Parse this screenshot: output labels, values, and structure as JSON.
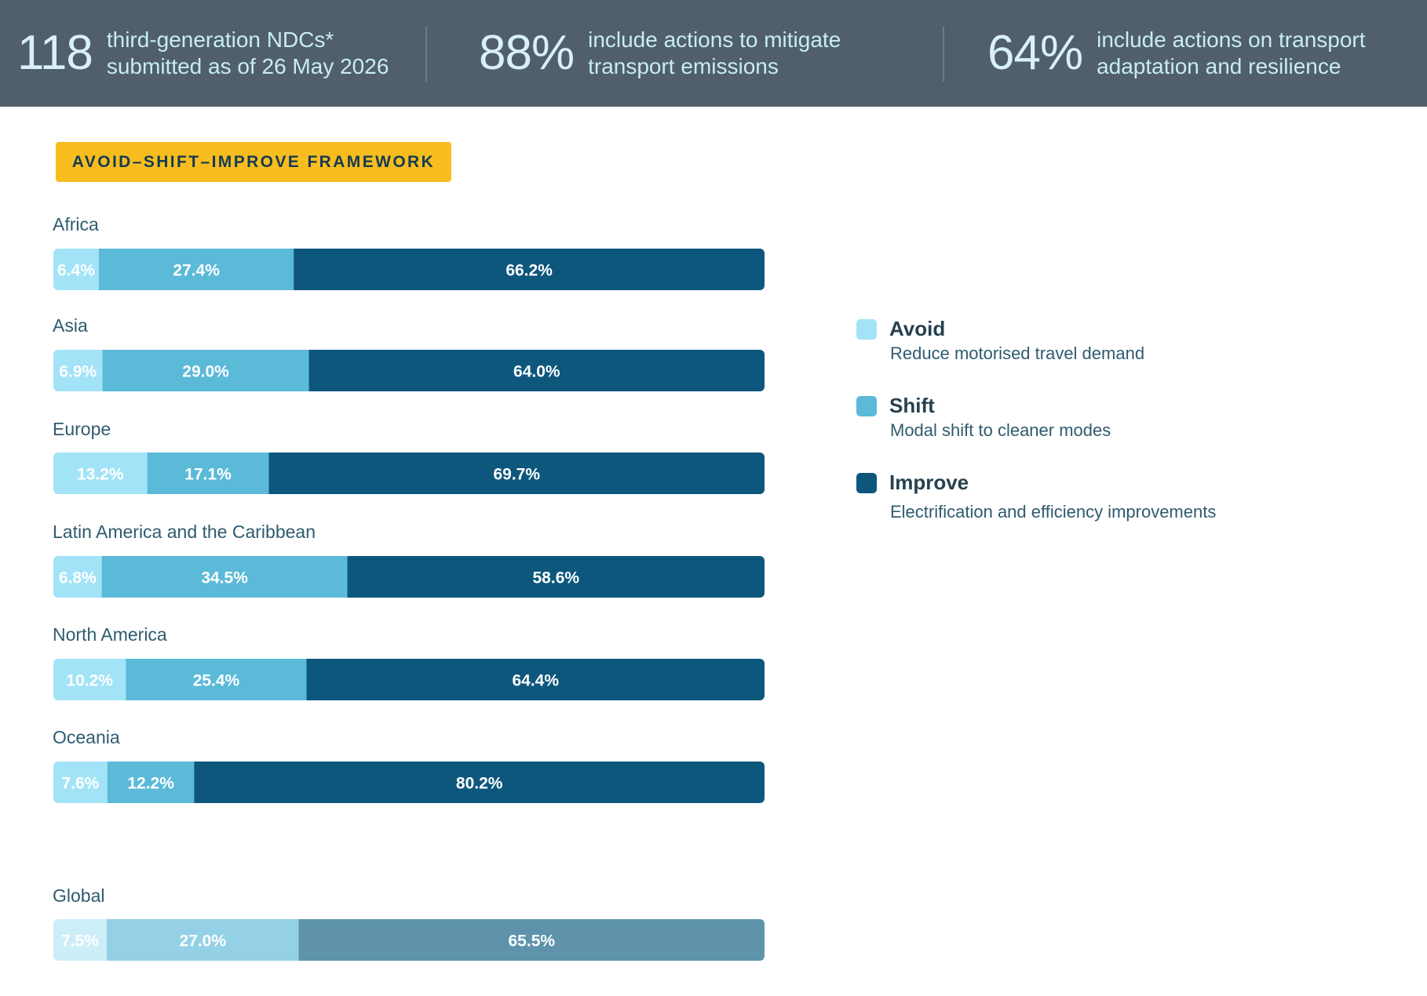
{
  "header": {
    "stats": [
      {
        "number": "118",
        "text": "third-generation NDCs*\nsubmitted as of 26 May 2026"
      },
      {
        "number": "88%",
        "text": "include actions to mitigate\ntransport emissions"
      },
      {
        "number": "64%",
        "text": "include actions on transport\nadaptation and resilience"
      }
    ]
  },
  "badge": "AVOID–SHIFT–IMPROVE FRAMEWORK",
  "colors": {
    "avoid": "#a3e3f8",
    "shift": "#5bbad8",
    "improve": "#0d577d",
    "global_avoid": "#cdeef9",
    "global_shift": "#94d1e6",
    "global_improve": "#5e93ab"
  },
  "legend": [
    {
      "name": "Avoid",
      "desc": "Reduce motorised travel demand",
      "color": "#a3e3f8"
    },
    {
      "name": "Shift",
      "desc": "Modal shift to cleaner modes",
      "color": "#5bbad8"
    },
    {
      "name": "Improve",
      "desc": "Electrification and efficiency improvements",
      "color": "#0d577d"
    }
  ],
  "chart_data": {
    "type": "bar",
    "orientation": "horizontal",
    "stacked": true,
    "categories": [
      "Africa",
      "Asia",
      "Europe",
      "Latin America and the Caribbean",
      "North America",
      "Oceania",
      "Global"
    ],
    "series": [
      {
        "name": "Avoid",
        "values": [
          6.4,
          6.9,
          13.2,
          6.8,
          10.2,
          7.6,
          7.5
        ]
      },
      {
        "name": "Shift",
        "values": [
          27.4,
          29.0,
          17.1,
          34.5,
          25.4,
          12.2,
          27.0
        ]
      },
      {
        "name": "Improve",
        "values": [
          66.2,
          64.0,
          69.7,
          58.6,
          64.4,
          80.2,
          65.5
        ]
      }
    ],
    "value_labels": [
      [
        "6.4%",
        "27.4%",
        "66.2%"
      ],
      [
        "6.9%",
        "29.0%",
        "64.0%"
      ],
      [
        "13.2%",
        "17.1%",
        "69.7%"
      ],
      [
        "6.8%",
        "34.5%",
        "58.6%"
      ],
      [
        "10.2%",
        "25.4%",
        "64.4%"
      ],
      [
        "7.6%",
        "12.2%",
        "80.2%"
      ],
      [
        "7.5%",
        "27.0%",
        "65.5%"
      ]
    ],
    "xlim": [
      0,
      100
    ],
    "legend_position": "right",
    "grid": false
  }
}
